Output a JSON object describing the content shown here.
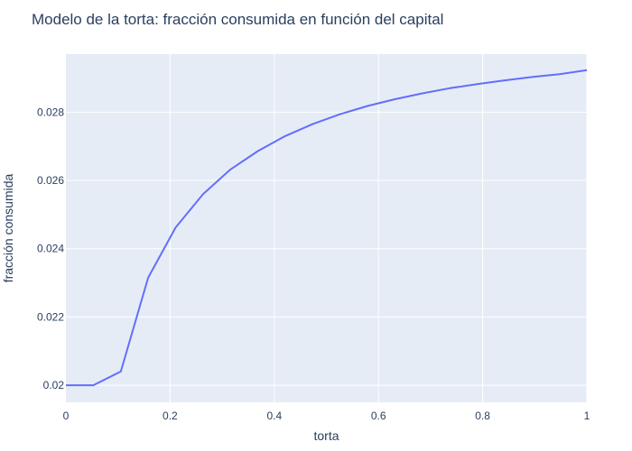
{
  "chart_data": {
    "type": "line",
    "title": "Modelo de la torta: fracción consumida en función del capital",
    "xlabel": "torta",
    "ylabel": "fracción consumida",
    "xlim": [
      0,
      1
    ],
    "ylim": [
      0.0195,
      0.0297
    ],
    "x_ticks": [
      0,
      0.2,
      0.4,
      0.6,
      0.8,
      1
    ],
    "x_tick_labels": [
      "0",
      "0.2",
      "0.4",
      "0.6",
      "0.8",
      "1"
    ],
    "y_ticks": [
      0.02,
      0.022,
      0.024,
      0.026,
      0.028
    ],
    "y_tick_labels": [
      "0.02",
      "0.022",
      "0.024",
      "0.026",
      "0.028"
    ],
    "grid": true,
    "colors": {
      "line": "#636efa",
      "plot_bg": "#e5ecf6",
      "grid": "#ffffff",
      "text": "#2a3f5f"
    },
    "series": [
      {
        "x": [
          0,
          0.0526,
          0.1053,
          0.1579,
          0.2105,
          0.2632,
          0.3158,
          0.3684,
          0.4211,
          0.4737,
          0.5263,
          0.5789,
          0.6316,
          0.6842,
          0.7368,
          0.7895,
          0.8421,
          0.8947,
          0.9474,
          1.0
        ],
        "y": [
          0.02,
          0.02,
          0.0204,
          0.02315,
          0.02462,
          0.0256,
          0.02632,
          0.02686,
          0.0273,
          0.02765,
          0.02794,
          0.02818,
          0.02838,
          0.02855,
          0.0287,
          0.02882,
          0.02893,
          0.02903,
          0.02911,
          0.02923
        ]
      }
    ]
  }
}
